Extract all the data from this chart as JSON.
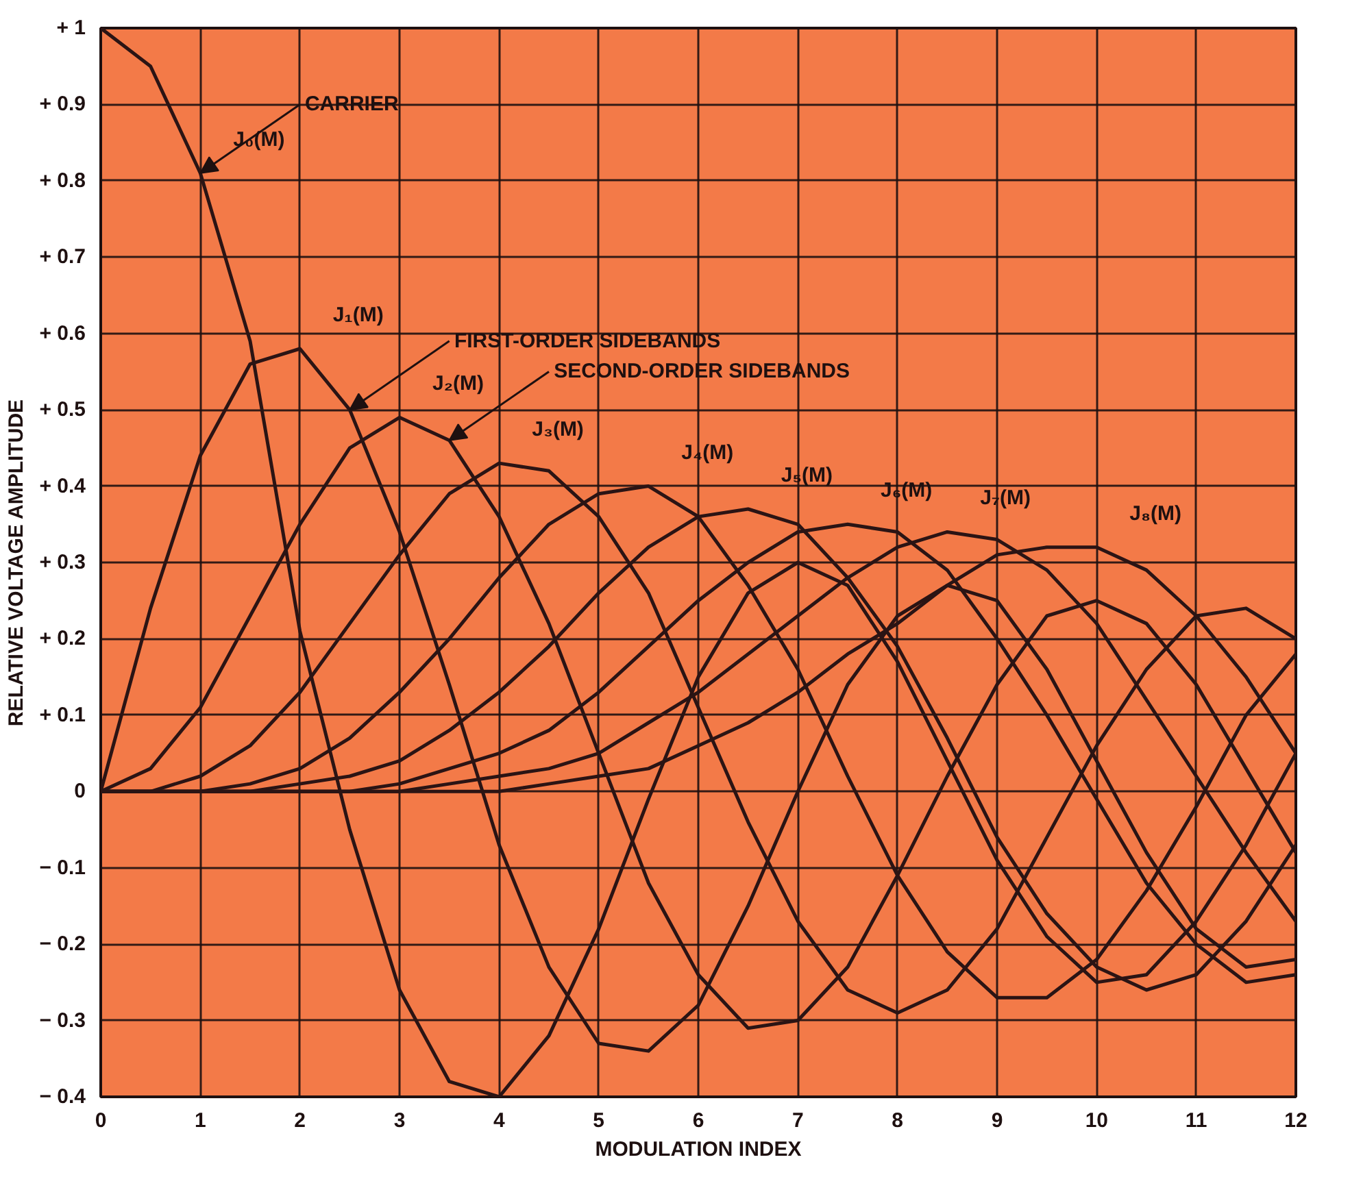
{
  "chart_data": {
    "type": "line",
    "xlabel": "MODULATION INDEX",
    "ylabel": "RELATIVE VOLTAGE AMPLITUDE",
    "x": [
      0,
      0.5,
      1,
      1.5,
      2,
      2.5,
      3,
      3.5,
      4,
      4.5,
      5,
      5.5,
      6,
      6.5,
      7,
      7.5,
      8,
      8.5,
      9,
      9.5,
      10,
      10.5,
      11,
      11.5,
      12
    ],
    "series": [
      {
        "name": "J₀(M)",
        "color": "#2b1414",
        "values": [
          1,
          0.95,
          0.81,
          0.59,
          0.21,
          -0.05,
          -0.26,
          -0.38,
          -0.4,
          -0.32,
          -0.18,
          -0.01,
          0.15,
          0.26,
          0.3,
          0.27,
          0.17,
          0.04,
          -0.09,
          -0.19,
          -0.25,
          -0.24,
          -0.17,
          -0.07,
          0.05
        ]
      },
      {
        "name": "J₁(M)",
        "color": "#2b1414",
        "values": [
          0,
          0.24,
          0.44,
          0.56,
          0.58,
          0.5,
          0.34,
          0.14,
          -0.07,
          -0.23,
          -0.33,
          -0.34,
          -0.28,
          -0.15,
          0.0,
          0.14,
          0.23,
          0.27,
          0.25,
          0.16,
          0.04,
          -0.08,
          -0.18,
          -0.23,
          -0.22
        ]
      },
      {
        "name": "J₂(M)",
        "color": "#2b1414",
        "values": [
          0,
          0.03,
          0.11,
          0.23,
          0.35,
          0.45,
          0.49,
          0.46,
          0.36,
          0.22,
          0.05,
          -0.12,
          -0.24,
          -0.31,
          -0.3,
          -0.23,
          -0.11,
          0.02,
          0.14,
          0.23,
          0.25,
          0.22,
          0.14,
          0.03,
          -0.08
        ]
      },
      {
        "name": "J₃(M)",
        "color": "#2b1414",
        "values": [
          0,
          0.0,
          0.02,
          0.06,
          0.13,
          0.22,
          0.31,
          0.39,
          0.43,
          0.42,
          0.36,
          0.26,
          0.11,
          -0.04,
          -0.17,
          -0.26,
          -0.29,
          -0.26,
          -0.18,
          -0.06,
          0.06,
          0.16,
          0.23,
          0.24,
          0.2
        ]
      },
      {
        "name": "J₄(M)",
        "color": "#2b1414",
        "values": [
          0,
          0.0,
          0.0,
          0.01,
          0.03,
          0.07,
          0.13,
          0.2,
          0.28,
          0.35,
          0.39,
          0.4,
          0.36,
          0.27,
          0.16,
          0.02,
          -0.11,
          -0.21,
          -0.27,
          -0.27,
          -0.22,
          -0.13,
          -0.02,
          0.1,
          0.18
        ]
      },
      {
        "name": "J₅(M)",
        "color": "#2b1414",
        "values": [
          0,
          0.0,
          0.0,
          0.0,
          0.01,
          0.02,
          0.04,
          0.08,
          0.13,
          0.19,
          0.26,
          0.32,
          0.36,
          0.37,
          0.35,
          0.28,
          0.19,
          0.07,
          -0.06,
          -0.16,
          -0.23,
          -0.26,
          -0.24,
          -0.17,
          -0.07
        ]
      },
      {
        "name": "J₆(M)",
        "color": "#2b1414",
        "values": [
          0,
          0.0,
          0.0,
          0.0,
          0.0,
          0.0,
          0.01,
          0.03,
          0.05,
          0.08,
          0.13,
          0.19,
          0.25,
          0.3,
          0.34,
          0.35,
          0.34,
          0.29,
          0.2,
          0.1,
          -0.01,
          -0.12,
          -0.2,
          -0.25,
          -0.24
        ]
      },
      {
        "name": "J₇(M)",
        "color": "#2b1414",
        "values": [
          0,
          0.0,
          0.0,
          0.0,
          0.0,
          0.0,
          0.0,
          0.01,
          0.02,
          0.03,
          0.05,
          0.09,
          0.13,
          0.18,
          0.23,
          0.28,
          0.32,
          0.34,
          0.33,
          0.29,
          0.22,
          0.12,
          0.02,
          -0.08,
          -0.17
        ]
      },
      {
        "name": "J₈(M)",
        "color": "#2b1414",
        "values": [
          0,
          0.0,
          0.0,
          0.0,
          0.0,
          0.0,
          0.0,
          0.0,
          0.0,
          0.01,
          0.02,
          0.03,
          0.06,
          0.09,
          0.13,
          0.18,
          0.22,
          0.27,
          0.31,
          0.32,
          0.32,
          0.29,
          0.23,
          0.15,
          0.05
        ]
      }
    ],
    "xlim": [
      0,
      12
    ],
    "ylim": [
      -0.4,
      1
    ],
    "xticks": [
      0,
      1,
      2,
      3,
      4,
      5,
      6,
      7,
      8,
      9,
      10,
      11,
      12
    ],
    "yticks": [
      {
        "value": 1,
        "label": "+ 1"
      },
      {
        "value": 0.9,
        "label": "+ 0.9"
      },
      {
        "value": 0.8,
        "label": "+ 0.8"
      },
      {
        "value": 0.7,
        "label": "+ 0.7"
      },
      {
        "value": 0.6,
        "label": "+ 0.6"
      },
      {
        "value": 0.5,
        "label": "+ 0.5"
      },
      {
        "value": 0.4,
        "label": "+ 0.4"
      },
      {
        "value": 0.3,
        "label": "+ 0.3"
      },
      {
        "value": 0.2,
        "label": "+ 0.2"
      },
      {
        "value": 0.1,
        "label": "+ 0.1"
      },
      0,
      {
        "value": -0.1,
        "label": "− 0.1"
      },
      {
        "value": -0.2,
        "label": "− 0.2"
      },
      {
        "value": -0.3,
        "label": "− 0.3"
      },
      {
        "value": -0.4,
        "label": "− 0.4"
      }
    ],
    "grid": true,
    "annotations": [
      {
        "text": "CARRIER",
        "x": 1,
        "y": 0.81
      },
      {
        "text": "FIRST-ORDER SIDEBANDS",
        "x": 2.5,
        "y": 0.5
      },
      {
        "text": "SECOND-ORDER SIDEBANDS",
        "x": 3.5,
        "y": 0.46
      }
    ]
  }
}
